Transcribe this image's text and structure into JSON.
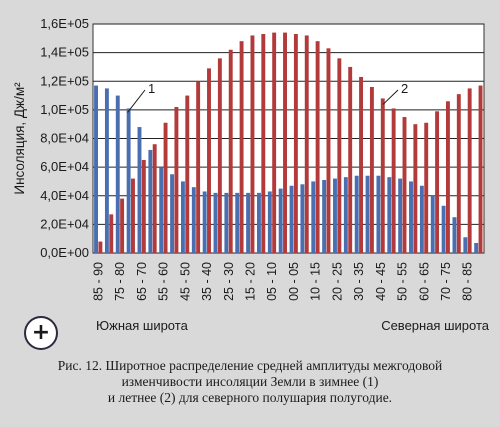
{
  "chart_data": {
    "type": "bar",
    "ylabel": "Инсоляция, Дж/м²",
    "ylim": [
      0,
      160000
    ],
    "yticks": [
      "0,0E+00",
      "2,0E+04",
      "4,0E+04",
      "6,0E+04",
      "8,0E+04",
      "1,0E+05",
      "1,2E+05",
      "1,4E+05",
      "1,6E+05"
    ],
    "ytick_values": [
      0,
      20000,
      40000,
      60000,
      80000,
      100000,
      120000,
      140000,
      160000
    ],
    "grid": true,
    "categories": [
      "85 - 90",
      "80 - 85",
      "75 - 80",
      "70 - 75",
      "65 - 70",
      "60 - 65",
      "55 - 60",
      "50 - 55",
      "45 - 50",
      "40 - 45",
      "35 - 40",
      "30 - 35",
      "25 - 30",
      "20 - 25",
      "15 - 20",
      "10 - 15",
      "05 - 10",
      "00 - 05",
      "00 - 05",
      "05 - 10",
      "10 - 15",
      "15 - 20",
      "20 - 25",
      "25 - 30",
      "30 - 35",
      "35 - 40",
      "40 - 45",
      "45 - 50",
      "50 - 55",
      "55 - 60",
      "60 - 65",
      "65 - 70",
      "70 - 75",
      "75 - 80",
      "80 - 85",
      "85 - 90"
    ],
    "visible_tick_labels": [
      "85 - 90",
      "75 - 80",
      "65 - 70",
      "55 - 60",
      "45 - 50",
      "35 - 40",
      "25 - 30",
      "15 - 20",
      "05 - 10",
      "00 - 05",
      "10 - 15",
      "20 - 25",
      "30 - 35",
      "40 - 45",
      "50 - 55",
      "60 - 65",
      "70 - 75",
      "80 - 85"
    ],
    "series": [
      {
        "name": "1",
        "color": "#4a6fb0",
        "values": [
          117000,
          115000,
          110000,
          101000,
          88000,
          72000,
          60000,
          55000,
          50000,
          46000,
          43000,
          42000,
          42000,
          42000,
          42000,
          42000,
          43000,
          45000,
          47000,
          48000,
          50000,
          51000,
          52000,
          53000,
          54000,
          54000,
          54000,
          53000,
          52000,
          50000,
          47000,
          40000,
          33000,
          25000,
          11000,
          7000
        ]
      },
      {
        "name": "2",
        "color": "#b23a3a",
        "values": [
          8000,
          27000,
          38000,
          52000,
          65000,
          76000,
          91000,
          102000,
          110000,
          120000,
          129000,
          136000,
          142000,
          148000,
          152000,
          153000,
          154000,
          154000,
          153000,
          152000,
          148000,
          143000,
          136000,
          130000,
          123000,
          116000,
          108000,
          101000,
          95000,
          90000,
          91000,
          99000,
          106000,
          111000,
          115000,
          117000
        ]
      }
    ],
    "annotations": [
      "1",
      "2"
    ],
    "region_labels": {
      "south": "Южная широта",
      "north": "Северная широта"
    }
  },
  "badge": {
    "symbol": "+"
  },
  "caption": {
    "line1": "Рис. 12. Широтное распределение средней амплитуды межгодовой",
    "line2": "изменчивости инсоляции Земли в зимнее (1)",
    "line3": "и летнее (2)  для северного полушария полугодие."
  }
}
